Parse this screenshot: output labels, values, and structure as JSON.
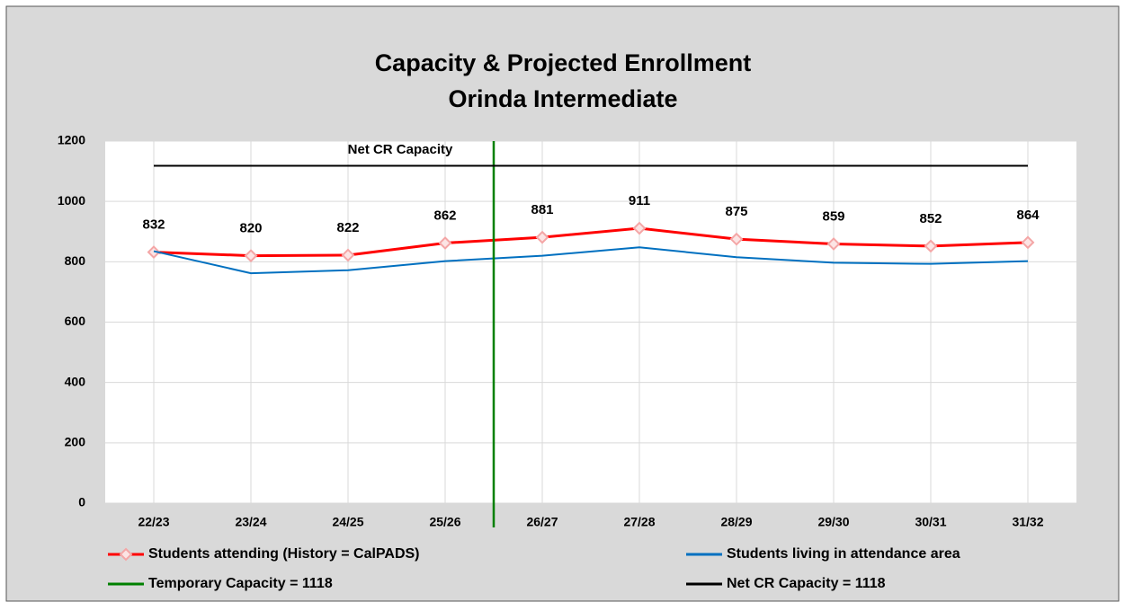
{
  "chart_data": {
    "type": "line",
    "title": [
      "Capacity & Projected Enrollment",
      "Orinda Intermediate"
    ],
    "categories": [
      "22/23",
      "23/24",
      "24/25",
      "25/26",
      "26/27",
      "27/28",
      "28/29",
      "29/30",
      "30/31",
      "31/32"
    ],
    "series": [
      {
        "name": "Students attending (History = CalPADS)",
        "color": "#ff0000",
        "marker": "diamond",
        "data_labels": true,
        "values": [
          832,
          820,
          822,
          862,
          881,
          911,
          875,
          859,
          852,
          864
        ]
      },
      {
        "name": "Students living in attendance area",
        "color": "#0070c0",
        "values": [
          835,
          762,
          772,
          802,
          820,
          848,
          815,
          797,
          793,
          802
        ]
      },
      {
        "name": "Temporary Capacity = 1118",
        "color": "#008000",
        "vertical_after": "25/26"
      },
      {
        "name": "Net CR Capacity = 1118",
        "color": "#000000",
        "values": [
          1118,
          1118,
          1118,
          1118,
          1118,
          1118,
          1118,
          1118,
          1118,
          1118
        ]
      }
    ],
    "annotation": "Net CR Capacity",
    "ylim": [
      0,
      1200
    ],
    "yticks": [
      0,
      200,
      400,
      600,
      800,
      1000,
      1200
    ],
    "grid": true,
    "xgrid": true
  }
}
